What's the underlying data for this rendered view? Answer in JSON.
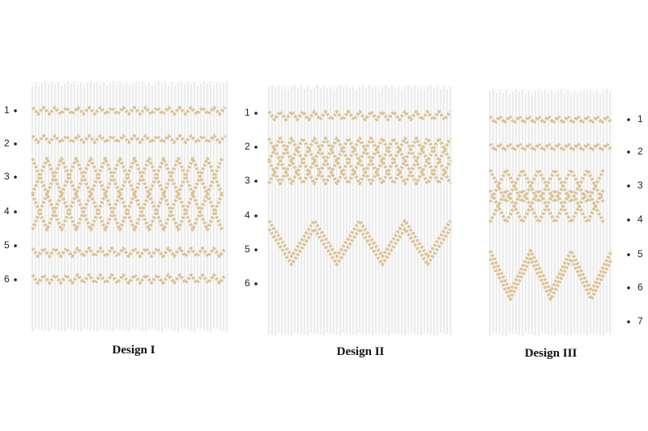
{
  "designs": [
    {
      "label": "Design I",
      "rows": [
        "1",
        "2",
        "3",
        "4",
        "5",
        "6"
      ]
    },
    {
      "label": "Design II",
      "rows": [
        "1",
        "2",
        "3",
        "4",
        "5",
        "6"
      ]
    },
    {
      "label": "Design III",
      "rows": [
        "1",
        "2",
        "3",
        "4",
        "5",
        "6",
        "7"
      ]
    }
  ]
}
